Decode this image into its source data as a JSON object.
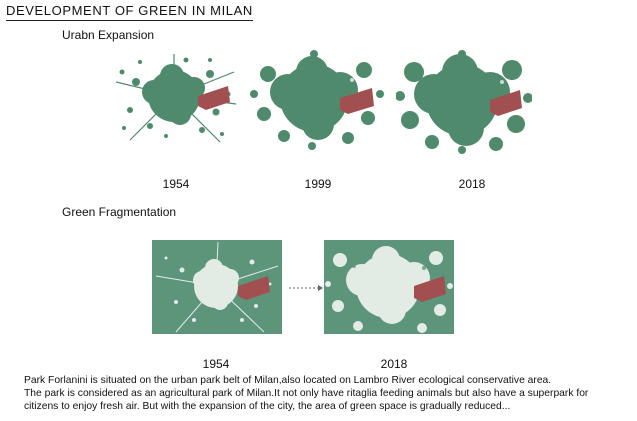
{
  "title": "DEVELOPMENT  OF  GREEN IN MILAN",
  "urban_expansion": {
    "heading": "Urabn Expansion",
    "years": [
      "1954",
      "1999",
      "2018"
    ]
  },
  "green_fragmentation": {
    "heading": "Green Fragmentation",
    "years": [
      "1954",
      "2018"
    ]
  },
  "caption": {
    "lines": [
      "Park Forlanini is situated on the urban park belt of Milan,also located on Lambro River ecological conservative area.",
      "The park is considered as an agricultural park of Milan.It not only have ritaglia feeding animals but also have a superpark for",
      "citizens to enjoy fresh air. But with the expansion of the city, the area of green space is gradually reduced..."
    ]
  },
  "colors": {
    "urban_green": "#4f8a6c",
    "background_green": "#5c957a",
    "park_red": "#a24f50",
    "urban_fabric": "#e3ebe5"
  }
}
